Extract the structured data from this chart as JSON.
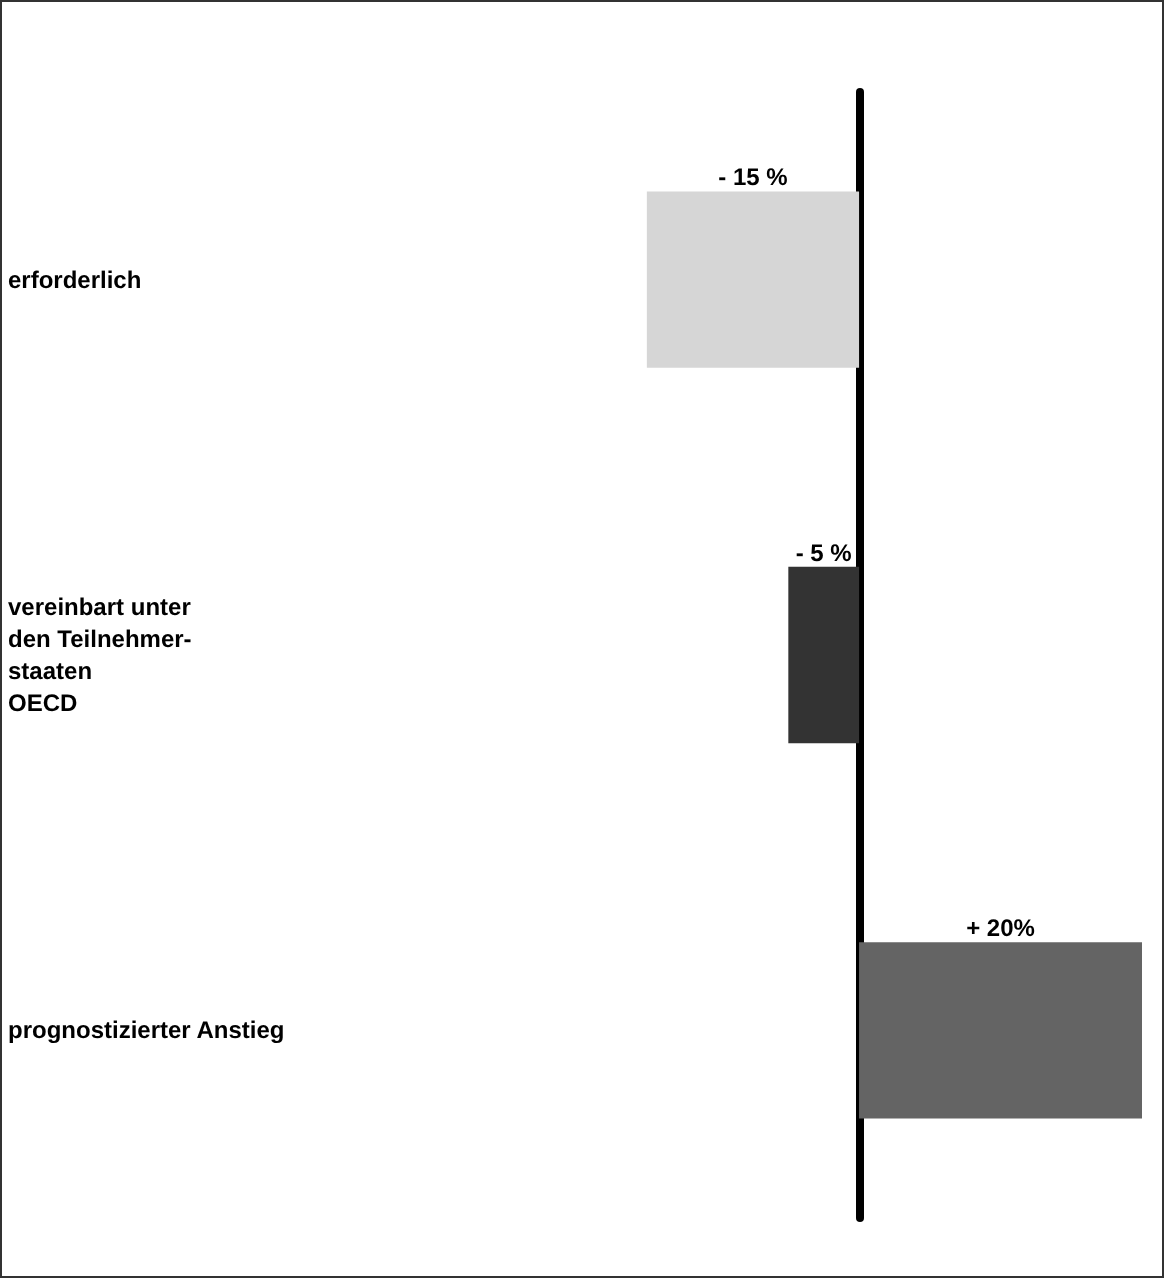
{
  "chart_data": {
    "type": "bar",
    "orientation": "horizontal",
    "categories": [
      "erforderlich",
      "vereinbart unter\nden Teilnehmer-\nstaaten\nOECD",
      "prognostizierter Anstieg"
    ],
    "values": [
      -15,
      -5,
      20
    ],
    "colors": [
      "#d6d6d6",
      "#333333",
      "#646464"
    ],
    "value_labels": [
      "- 15 %",
      "- 5 %",
      "+ 20%"
    ]
  }
}
